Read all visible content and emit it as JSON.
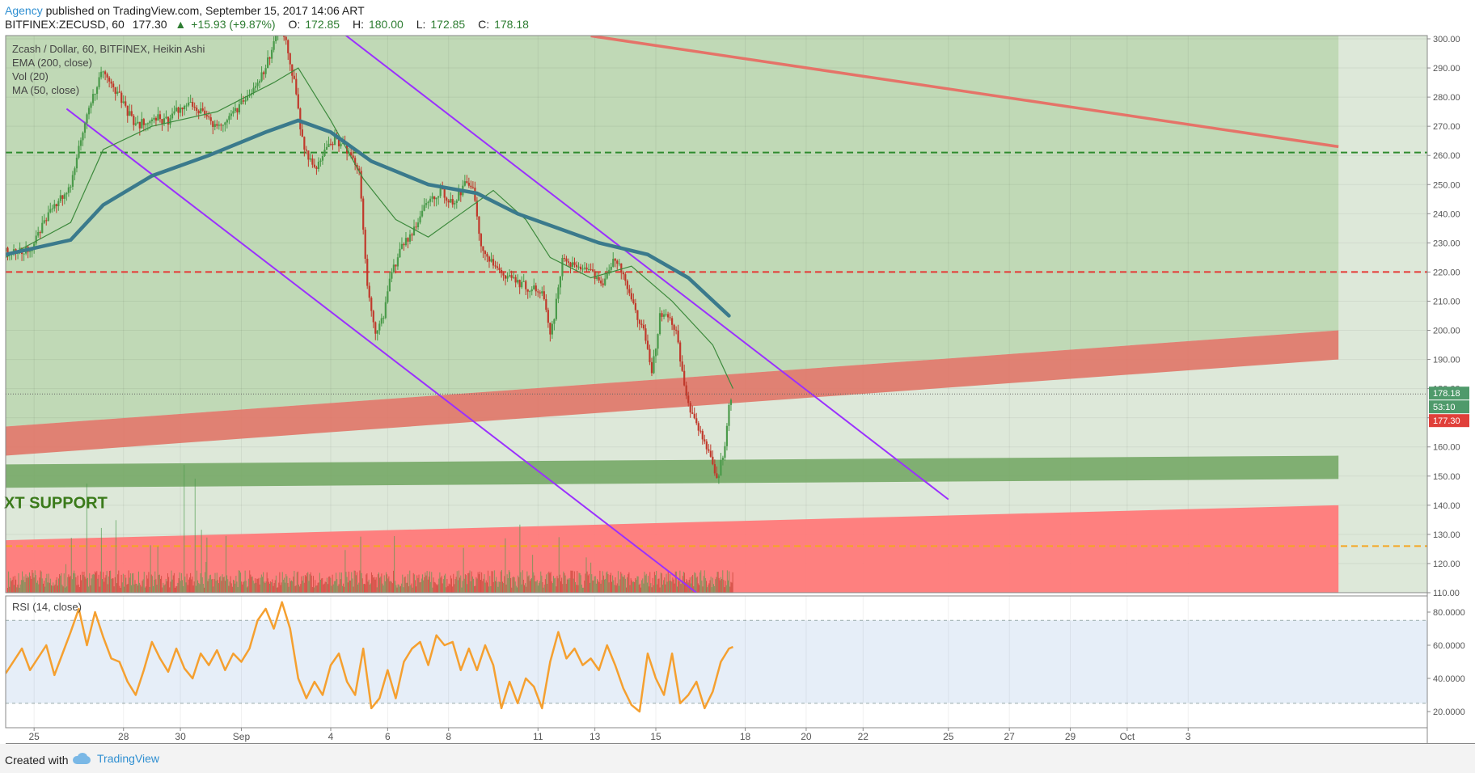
{
  "header": {
    "publisher": "Agency",
    "published_text": "published on TradingView.com, September 15, 2017 14:06 ART",
    "symbol": "BITFINEX:ZECUSD, 60",
    "price": "177.30",
    "change": "+15.93 (+9.87%)",
    "open_label": "O:",
    "open": "172.85",
    "high_label": "H:",
    "high": "180.00",
    "low_label": "L:",
    "low": "172.85",
    "close_label": "C:",
    "close": "178.18"
  },
  "legend": {
    "title": "Zcash / Dollar, 60, BITFINEX, Heikin Ashi",
    "ema": "EMA (200, close)",
    "vol": "Vol (20)",
    "ma": "MA (50, close)"
  },
  "rsi_legend": "RSI (14, close)",
  "annotation": "XT SUPPORT",
  "footer": {
    "created": "Created with",
    "brand": "TradingView"
  },
  "colors": {
    "bg_upper": "#c0d9b6",
    "bg_lower": "#dde8d9",
    "red_band": "#e07567",
    "green_band": "#76a866",
    "bottom_red": "#ff7a7a",
    "purple": "#9b30ff",
    "ema": "#3a7a8c",
    "ma": "#3d8a3d",
    "rsi": "#f5a030",
    "bull": "#4a9a4a",
    "bear": "#c0392b"
  },
  "chart_data": [
    {
      "type": "candlestick",
      "title": "Zcash / Dollar, 60, BITFINEX, Heikin Ashi",
      "x_tick_labels": [
        "25",
        "28",
        "30",
        "Sep",
        "4",
        "6",
        "8",
        "11",
        "13",
        "15",
        "18",
        "20",
        "22",
        "25",
        "27",
        "29",
        "Oct",
        "3"
      ],
      "y_tick_labels": [
        "300.00",
        "290.00",
        "280.00",
        "270.00",
        "260.00",
        "250.00",
        "240.00",
        "230.00",
        "220.00",
        "210.00",
        "200.00",
        "190.00",
        "180.00",
        "170.00",
        "160.00",
        "150.00",
        "140.00",
        "130.00",
        "120.00",
        "110.00"
      ],
      "ylim": [
        110,
        300
      ],
      "price_labels": {
        "last": "178.18",
        "countdown": "53:10",
        "current": "177.30"
      },
      "price_path": [
        [
          0,
          227
        ],
        [
          3,
          228
        ],
        [
          6,
          243
        ],
        [
          8,
          250
        ],
        [
          10,
          275
        ],
        [
          12,
          290
        ],
        [
          14,
          280
        ],
        [
          16,
          270
        ],
        [
          18,
          273
        ],
        [
          20,
          272
        ],
        [
          22,
          278
        ],
        [
          24,
          275
        ],
        [
          26,
          270
        ],
        [
          28,
          275
        ],
        [
          30,
          280
        ],
        [
          32,
          290
        ],
        [
          33.5,
          303
        ],
        [
          34.5,
          300
        ],
        [
          35.5,
          285
        ],
        [
          36.5,
          265
        ],
        [
          38,
          255
        ],
        [
          39,
          260
        ],
        [
          40.5,
          265
        ],
        [
          42,
          262
        ],
        [
          43.5,
          255
        ],
        [
          44.5,
          215
        ],
        [
          45.5,
          200
        ],
        [
          46.5,
          205
        ],
        [
          47.5,
          220
        ],
        [
          49,
          230
        ],
        [
          50.5,
          235
        ],
        [
          52,
          245
        ],
        [
          53.5,
          248
        ],
        [
          55,
          243
        ],
        [
          56.5,
          250
        ],
        [
          57.5,
          248
        ],
        [
          58.5,
          230
        ],
        [
          60,
          222
        ],
        [
          62,
          218
        ],
        [
          64,
          215
        ],
        [
          66,
          213
        ],
        [
          67,
          200
        ],
        [
          67.5,
          205
        ],
        [
          68.5,
          225
        ],
        [
          70,
          222
        ],
        [
          72,
          220
        ],
        [
          73.5,
          215
        ],
        [
          75,
          225
        ],
        [
          76,
          220
        ],
        [
          77,
          210
        ],
        [
          78.5,
          200
        ],
        [
          79.5,
          185
        ],
        [
          80.5,
          205
        ],
        [
          81.5,
          205
        ],
        [
          82.5,
          200
        ],
        [
          83.5,
          180
        ],
        [
          84.5,
          170
        ],
        [
          85.5,
          165
        ],
        [
          86.5,
          158
        ],
        [
          87.5,
          148
        ],
        [
          88.5,
          160
        ],
        [
          89,
          175
        ],
        [
          89.4,
          178.2
        ]
      ],
      "ema_200_path": [
        [
          0,
          226
        ],
        [
          8,
          231
        ],
        [
          12,
          243
        ],
        [
          18,
          253
        ],
        [
          25,
          260
        ],
        [
          32,
          268
        ],
        [
          36,
          272
        ],
        [
          40,
          268
        ],
        [
          45,
          258
        ],
        [
          52,
          250
        ],
        [
          58,
          247
        ],
        [
          63,
          240
        ],
        [
          68,
          235
        ],
        [
          73,
          230
        ],
        [
          79,
          226
        ],
        [
          84,
          218
        ],
        [
          89,
          205
        ]
      ],
      "ma_50_path": [
        [
          0,
          225
        ],
        [
          8,
          237
        ],
        [
          12,
          262
        ],
        [
          18,
          270
        ],
        [
          26,
          275
        ],
        [
          33,
          285
        ],
        [
          36,
          290
        ],
        [
          40,
          272
        ],
        [
          44,
          252
        ],
        [
          48,
          238
        ],
        [
          52,
          232
        ],
        [
          56,
          240
        ],
        [
          60,
          248
        ],
        [
          64,
          238
        ],
        [
          67,
          225
        ],
        [
          72,
          218
        ],
        [
          77,
          222
        ],
        [
          82,
          210
        ],
        [
          87,
          195
        ],
        [
          89.5,
          180
        ]
      ],
      "horizontal_levels": [
        {
          "price": 261,
          "color": "#2e8b2e"
        },
        {
          "price": 220,
          "color": "#e53935"
        },
        {
          "price": 126,
          "color": "#f5a623"
        }
      ],
      "bands": [
        {
          "name": "red resistance band",
          "x": [
            0,
            164
          ],
          "top": [
            167,
            200
          ],
          "bottom": [
            157,
            190
          ]
        },
        {
          "name": "green support band",
          "x": [
            0,
            164
          ],
          "top": [
            154,
            157
          ],
          "bottom": [
            146,
            149
          ]
        },
        {
          "name": "bottom red zone",
          "x": [
            0,
            164
          ],
          "top": [
            128,
            140
          ],
          "bottom": [
            110,
            110
          ]
        }
      ],
      "trendlines": [
        {
          "color": "#9b30ff",
          "from": [
            7.5,
            276
          ],
          "to": [
            85,
            110
          ]
        },
        {
          "color": "#9b30ff",
          "from": [
            41,
            303
          ],
          "to": [
            116,
            142
          ]
        },
        {
          "color": "#e57368",
          "from": [
            72,
            301
          ],
          "to": [
            164,
            263
          ]
        }
      ]
    },
    {
      "type": "line",
      "title": "RSI (14, close)",
      "y_tick_labels": [
        "80.0000",
        "60.0000",
        "40.0000",
        "20.0000"
      ],
      "ylim": [
        10,
        90
      ],
      "bands": {
        "upper": 75,
        "lower": 25
      },
      "path": [
        [
          0,
          43
        ],
        [
          2,
          58
        ],
        [
          3,
          45
        ],
        [
          5,
          60
        ],
        [
          6,
          42
        ],
        [
          7,
          55
        ],
        [
          8,
          68
        ],
        [
          9,
          82
        ],
        [
          10,
          60
        ],
        [
          11,
          80
        ],
        [
          12,
          65
        ],
        [
          13,
          52
        ],
        [
          14,
          50
        ],
        [
          15,
          38
        ],
        [
          16,
          30
        ],
        [
          17,
          45
        ],
        [
          18,
          62
        ],
        [
          19,
          52
        ],
        [
          20,
          44
        ],
        [
          21,
          58
        ],
        [
          22,
          46
        ],
        [
          23,
          40
        ],
        [
          24,
          55
        ],
        [
          25,
          48
        ],
        [
          26,
          57
        ],
        [
          27,
          45
        ],
        [
          28,
          55
        ],
        [
          29,
          50
        ],
        [
          30,
          58
        ],
        [
          31,
          75
        ],
        [
          32,
          82
        ],
        [
          33,
          70
        ],
        [
          34,
          86
        ],
        [
          35,
          70
        ],
        [
          36,
          40
        ],
        [
          37,
          28
        ],
        [
          38,
          38
        ],
        [
          39,
          30
        ],
        [
          40,
          48
        ],
        [
          41,
          55
        ],
        [
          42,
          38
        ],
        [
          43,
          30
        ],
        [
          44,
          58
        ],
        [
          45,
          22
        ],
        [
          46,
          28
        ],
        [
          47,
          45
        ],
        [
          48,
          28
        ],
        [
          49,
          50
        ],
        [
          50,
          58
        ],
        [
          51,
          62
        ],
        [
          52,
          48
        ],
        [
          53,
          66
        ],
        [
          54,
          60
        ],
        [
          55,
          62
        ],
        [
          56,
          45
        ],
        [
          57,
          58
        ],
        [
          58,
          45
        ],
        [
          59,
          60
        ],
        [
          60,
          48
        ],
        [
          61,
          22
        ],
        [
          62,
          38
        ],
        [
          63,
          25
        ],
        [
          64,
          40
        ],
        [
          65,
          35
        ],
        [
          66,
          22
        ],
        [
          67,
          50
        ],
        [
          68,
          68
        ],
        [
          69,
          52
        ],
        [
          70,
          58
        ],
        [
          71,
          48
        ],
        [
          72,
          52
        ],
        [
          73,
          45
        ],
        [
          74,
          60
        ],
        [
          75,
          48
        ],
        [
          76,
          34
        ],
        [
          77,
          24
        ],
        [
          78,
          20
        ],
        [
          79,
          55
        ],
        [
          80,
          40
        ],
        [
          81,
          30
        ],
        [
          82,
          55
        ],
        [
          83,
          25
        ],
        [
          84,
          30
        ],
        [
          85,
          38
        ],
        [
          86,
          22
        ],
        [
          87,
          32
        ],
        [
          88,
          50
        ],
        [
          89,
          58
        ],
        [
          89.5,
          59
        ]
      ]
    }
  ]
}
